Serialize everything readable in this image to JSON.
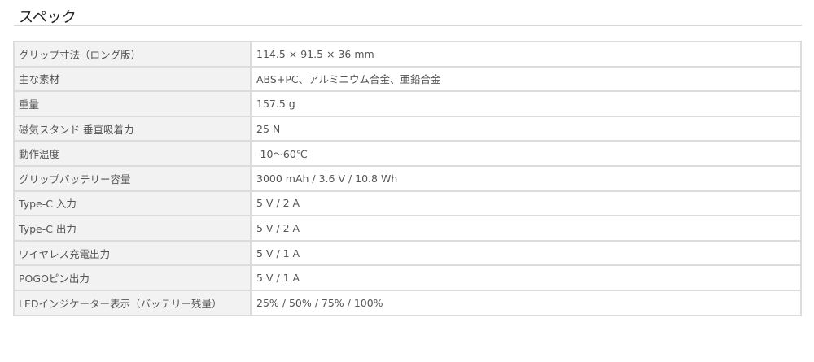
{
  "title": "スペック",
  "specs": [
    {
      "label": "グリップ寸法（ロング版）",
      "value": "114.5 × 91.5 × 36 mm"
    },
    {
      "label": "主な素材",
      "value": "ABS+PC、アルミニウム合金、亜鉛合金"
    },
    {
      "label": "重量",
      "value": "157.5 g"
    },
    {
      "label": "磁気スタンド 垂直吸着力",
      "value": "25 N"
    },
    {
      "label": "動作温度",
      "value": "-10〜60℃"
    },
    {
      "label": "グリップバッテリー容量",
      "value": "3000 mAh / 3.6 V / 10.8 Wh"
    },
    {
      "label": "Type-C 入力",
      "value": "5 V / 2 A"
    },
    {
      "label": "Type-C 出力",
      "value": "5 V / 2 A"
    },
    {
      "label": "ワイヤレス充電出力",
      "value": "5 V / 1 A"
    },
    {
      "label": "POGOピン出力",
      "value": "5 V / 1 A"
    },
    {
      "label": "LEDインジケーター表示（バッテリー残量）",
      "value": "25% / 50% / 75% / 100%"
    }
  ]
}
